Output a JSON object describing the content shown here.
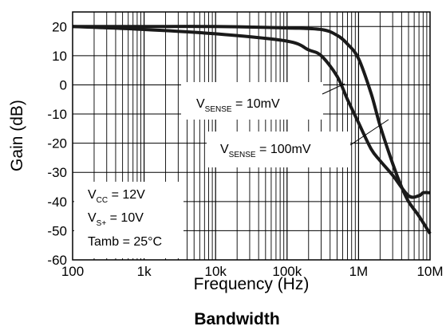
{
  "chart_data": {
    "type": "line",
    "title": "Bandwidth",
    "xlabel": "Frequency (Hz)",
    "ylabel": "Gain (dB)",
    "x_scale": "log",
    "xlim": [
      100,
      10000000
    ],
    "ylim": [
      -60,
      25
    ],
    "grid": true,
    "x_ticks": [
      100,
      1000,
      10000,
      100000,
      1000000,
      10000000
    ],
    "x_tick_labels": [
      "100",
      "1k",
      "10k",
      "100k",
      "1M",
      "10M"
    ],
    "y_ticks": [
      20,
      10,
      0,
      -10,
      -20,
      -30,
      -40,
      -50,
      -60
    ],
    "y_tick_labels": [
      "20",
      "10",
      "0",
      "-10",
      "-20",
      "-30",
      "-40",
      "-50",
      "-60"
    ],
    "series": [
      {
        "name": "VSENSE = 10mV",
        "x": [
          100,
          1000,
          10000,
          100000,
          300000,
          500000,
          700000,
          1000000,
          1500000,
          2000000,
          3000000,
          4000000,
          5000000,
          7000000,
          10000000
        ],
        "y": [
          20,
          20,
          20,
          19.5,
          19,
          17,
          14,
          9,
          -3,
          -14,
          -27,
          -35,
          -40,
          -45,
          -51
        ]
      },
      {
        "name": "VSENSE = 100mV",
        "x": [
          100,
          1000,
          10000,
          100000,
          200000,
          300000,
          500000,
          700000,
          1000000,
          1500000,
          2000000,
          3000000,
          5000000,
          7000000,
          8000000,
          10000000
        ],
        "y": [
          20,
          19,
          17.5,
          15,
          12,
          10,
          3,
          -5,
          -13,
          -22,
          -26,
          -31,
          -38,
          -38,
          -37,
          -37
        ]
      }
    ],
    "annotations": {
      "label_10mv": {
        "main": "V",
        "sub": "SENSE",
        "rest": " = 10mV"
      },
      "label_100mv": {
        "main": "V",
        "sub": "SENSE",
        "rest": " = 100mV"
      },
      "vcc": {
        "main": "V",
        "sub": "CC",
        "rest": " = 12V"
      },
      "vs": {
        "main": "V",
        "sub": "S+",
        "rest": " = 10V"
      },
      "tamb": "Tamb = 25°C"
    }
  }
}
